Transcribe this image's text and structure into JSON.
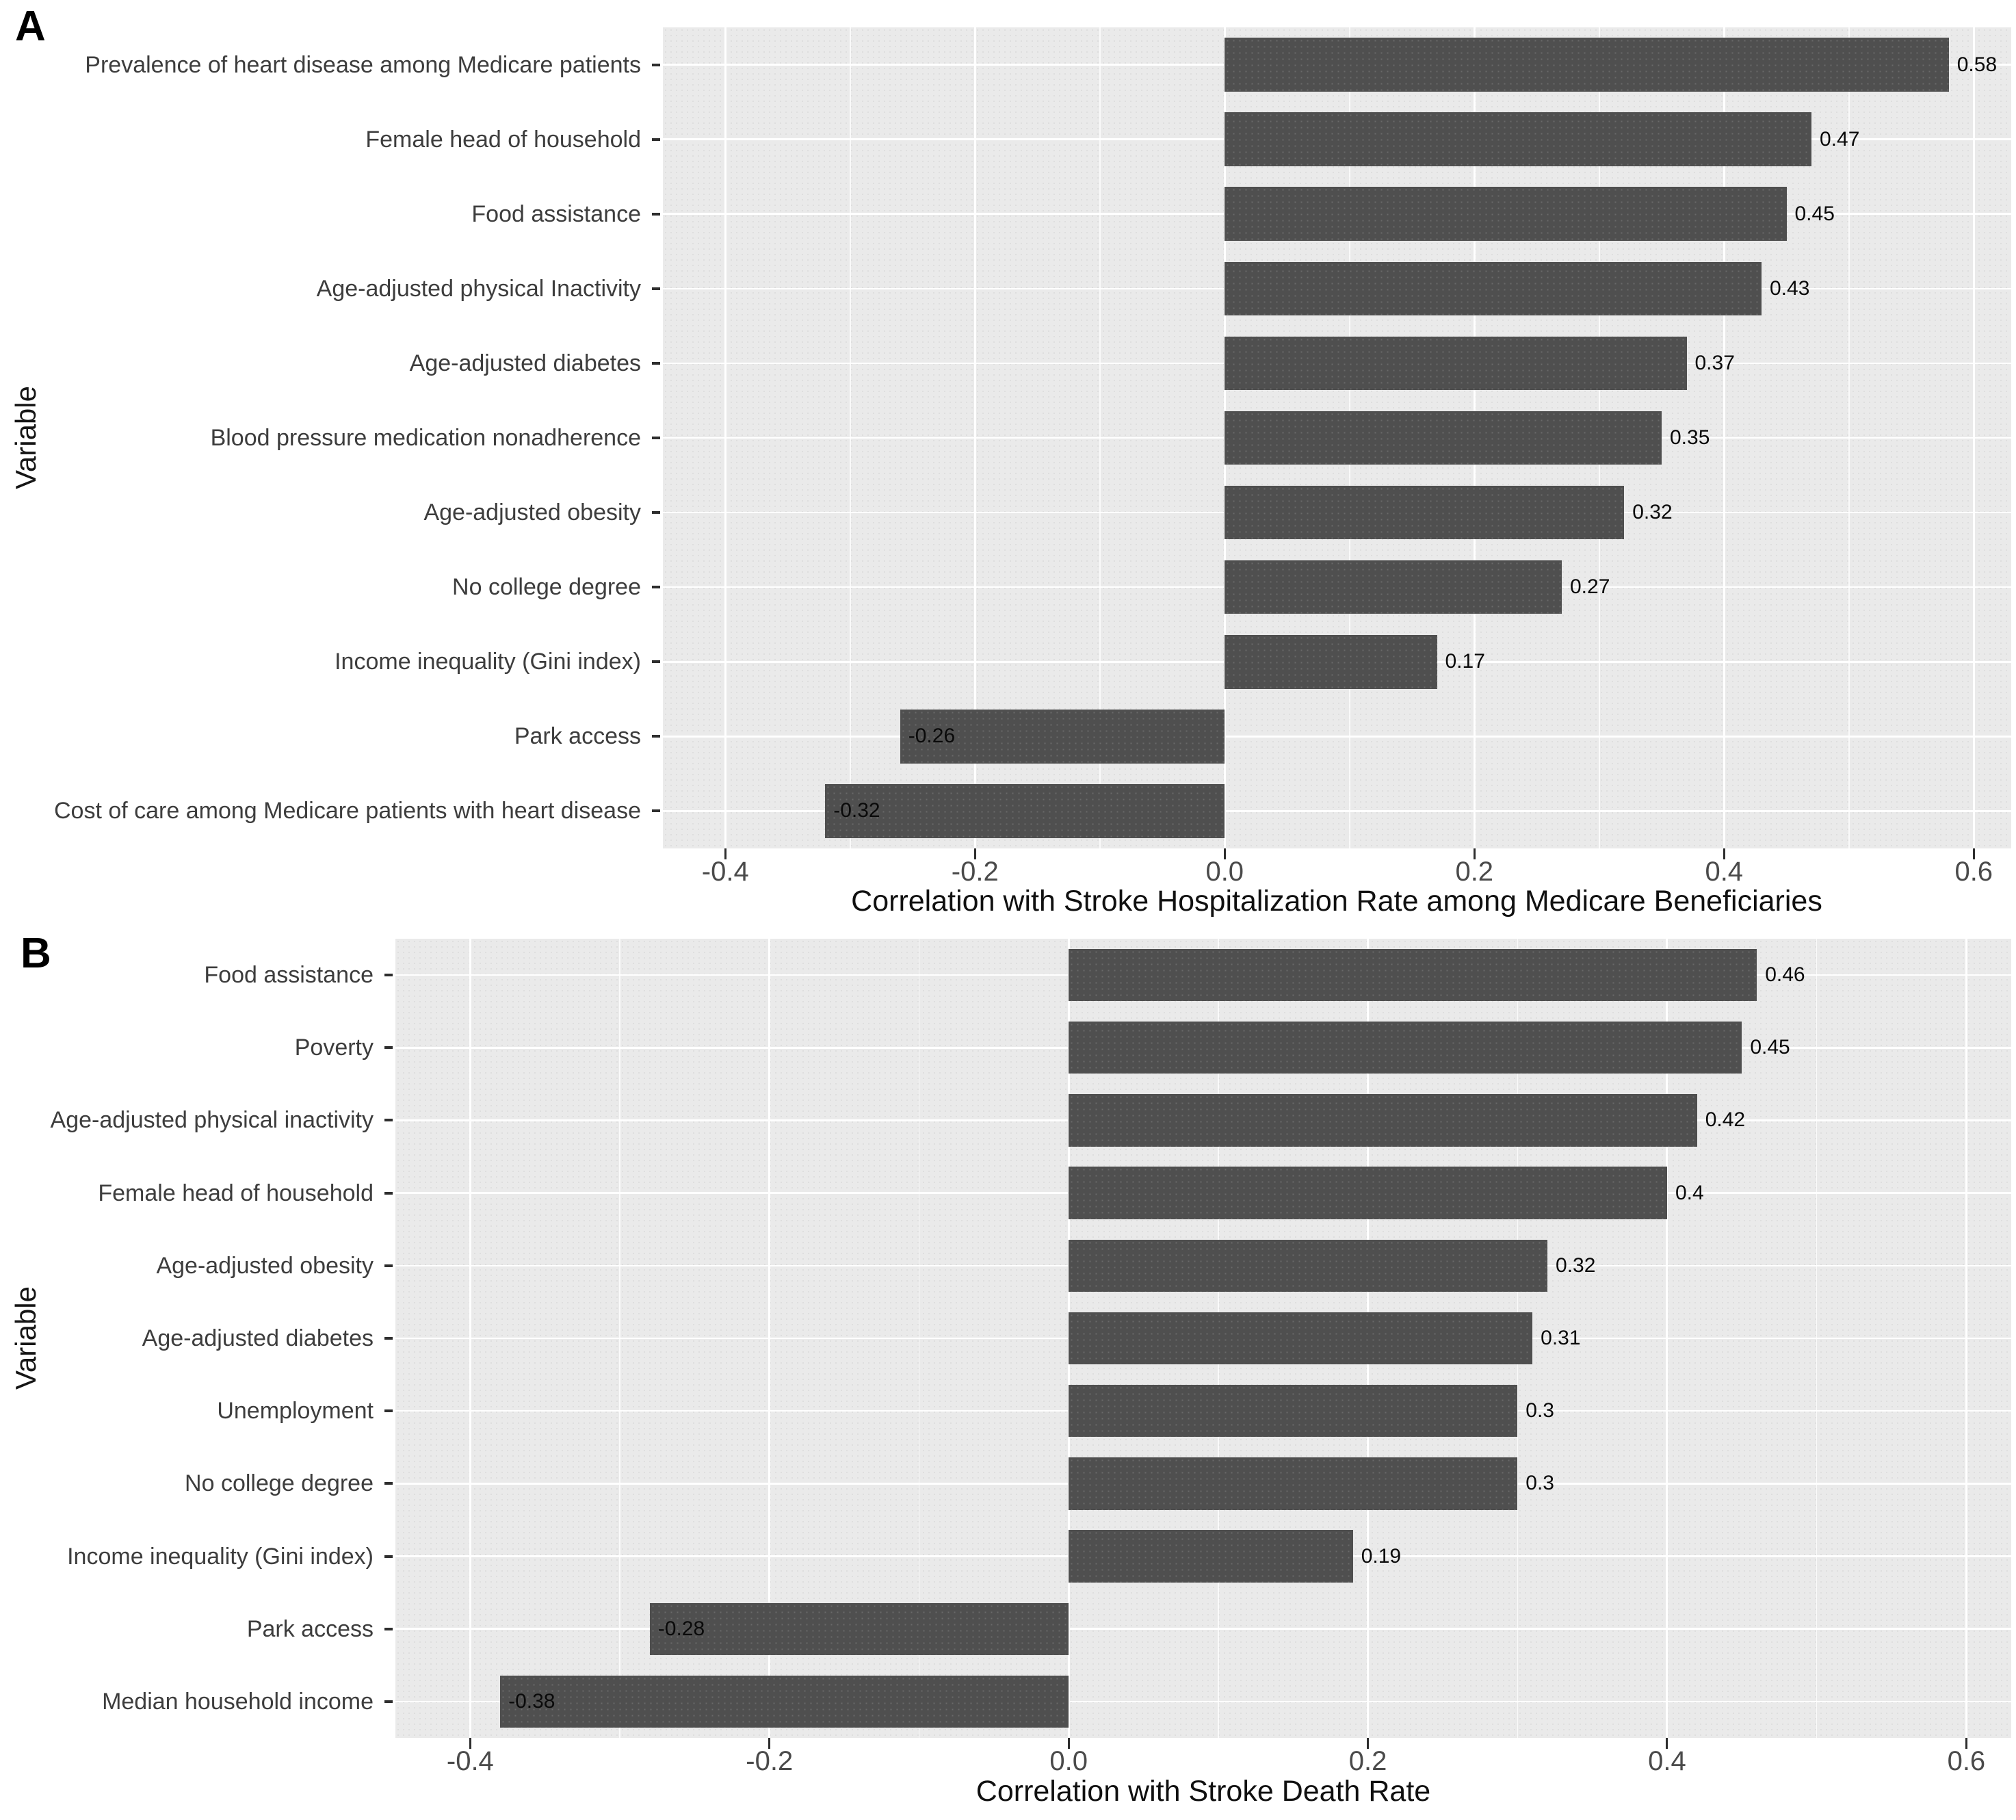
{
  "colors": {
    "bar": "#4f4f4f",
    "panel_background": "#eaeaea",
    "grid_major": "#ffffff",
    "axis_text": "#4a4a4a",
    "category_text": "#3d3d3d",
    "value_text": "#0a0a0a",
    "title_text": "#101010"
  },
  "chart_data": [
    {
      "type": "bar",
      "orientation": "horizontal",
      "panel_tag": "A",
      "title": "",
      "xlabel": "Correlation with Stroke Hospitalization Rate among Medicare Beneficiaries",
      "ylabel": "Variable",
      "xlim": [
        -0.45,
        0.63
      ],
      "x_ticks": [
        -0.4,
        -0.2,
        0.0,
        0.2,
        0.4,
        0.6
      ],
      "x_tick_labels": [
        "-0.4",
        "-0.2",
        "0.0",
        "0.2",
        "0.4",
        "0.6"
      ],
      "x_minor_ticks": [
        -0.3,
        -0.1,
        0.1,
        0.3,
        0.5
      ],
      "grid": true,
      "legend": "none",
      "categories": [
        "Prevalence of heart disease among Medicare patients",
        "Female head of household",
        "Food assistance",
        "Age-adjusted physical Inactivity",
        "Age-adjusted diabetes",
        "Blood pressure medication nonadherence",
        "Age-adjusted obesity",
        "No college degree",
        "Income inequality (Gini index)",
        "Park access",
        "Cost of care among Medicare patients with heart disease"
      ],
      "values": [
        0.58,
        0.47,
        0.45,
        0.43,
        0.37,
        0.35,
        0.32,
        0.27,
        0.17,
        -0.26,
        -0.32
      ],
      "value_labels": [
        "0.58",
        "0.47",
        "0.45",
        "0.43",
        "0.37",
        "0.35",
        "0.32",
        "0.27",
        "0.17",
        "-0.26",
        "-0.32"
      ]
    },
    {
      "type": "bar",
      "orientation": "horizontal",
      "panel_tag": "B",
      "title": "",
      "xlabel": "Correlation with Stroke Death Rate",
      "ylabel": "Variable",
      "xlim": [
        -0.45,
        0.63
      ],
      "x_ticks": [
        -0.4,
        -0.2,
        0.0,
        0.2,
        0.4,
        0.6
      ],
      "x_tick_labels": [
        "-0.4",
        "-0.2",
        "0.0",
        "0.2",
        "0.4",
        "0.6"
      ],
      "x_minor_ticks": [
        -0.3,
        -0.1,
        0.1,
        0.3,
        0.5
      ],
      "grid": true,
      "legend": "none",
      "categories": [
        "Food assistance",
        "Poverty",
        "Age-adjusted physical inactivity",
        "Female head of household",
        "Age-adjusted obesity",
        "Age-adjusted diabetes",
        "Unemployment",
        "No college degree",
        "Income inequality (Gini index)",
        "Park access",
        "Median household income"
      ],
      "values": [
        0.46,
        0.45,
        0.42,
        0.4,
        0.32,
        0.31,
        0.3,
        0.3,
        0.19,
        -0.28,
        -0.38
      ],
      "value_labels": [
        "0.46",
        "0.45",
        "0.42",
        "0.4",
        "0.32",
        "0.31",
        "0.3",
        "0.3",
        "0.19",
        "-0.28",
        "-0.38"
      ]
    }
  ]
}
